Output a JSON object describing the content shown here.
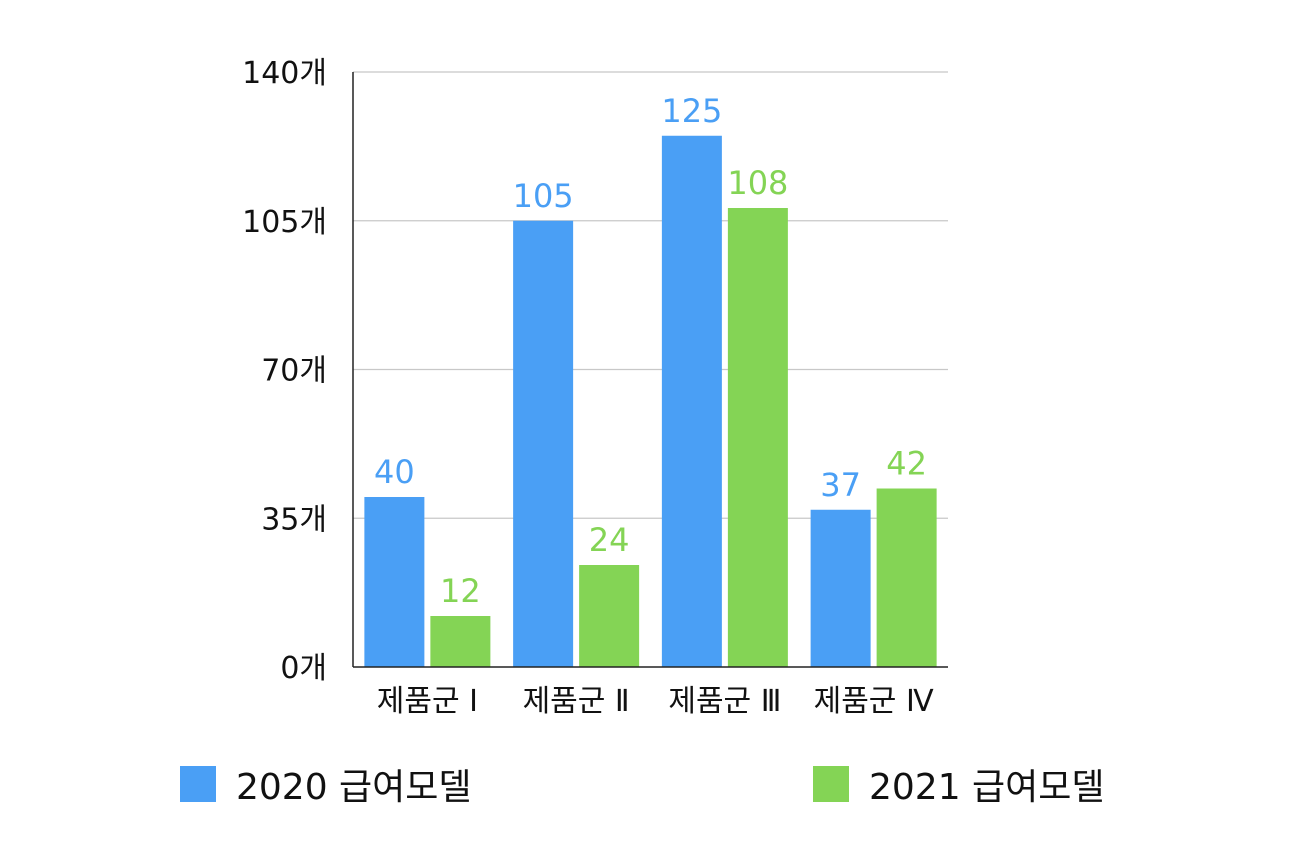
{
  "chart_data": {
    "type": "bar",
    "categories": [
      "제품군 Ⅰ",
      "제품군 Ⅱ",
      "제품군 Ⅲ",
      "제품군 Ⅳ"
    ],
    "series": [
      {
        "name": "2020 급여모델",
        "values": [
          40,
          105,
          125,
          37
        ],
        "color": "#4a9ff5"
      },
      {
        "name": "2021 급여모델",
        "values": [
          12,
          24,
          108,
          42
        ],
        "color": "#84d455"
      }
    ],
    "ylim": [
      0,
      140
    ],
    "yticks": [
      0,
      35,
      70,
      105,
      140
    ],
    "ytick_labels": [
      "0개",
      "35개",
      "70개",
      "105개",
      "140개"
    ],
    "grid": true,
    "legend_position": "bottom"
  }
}
